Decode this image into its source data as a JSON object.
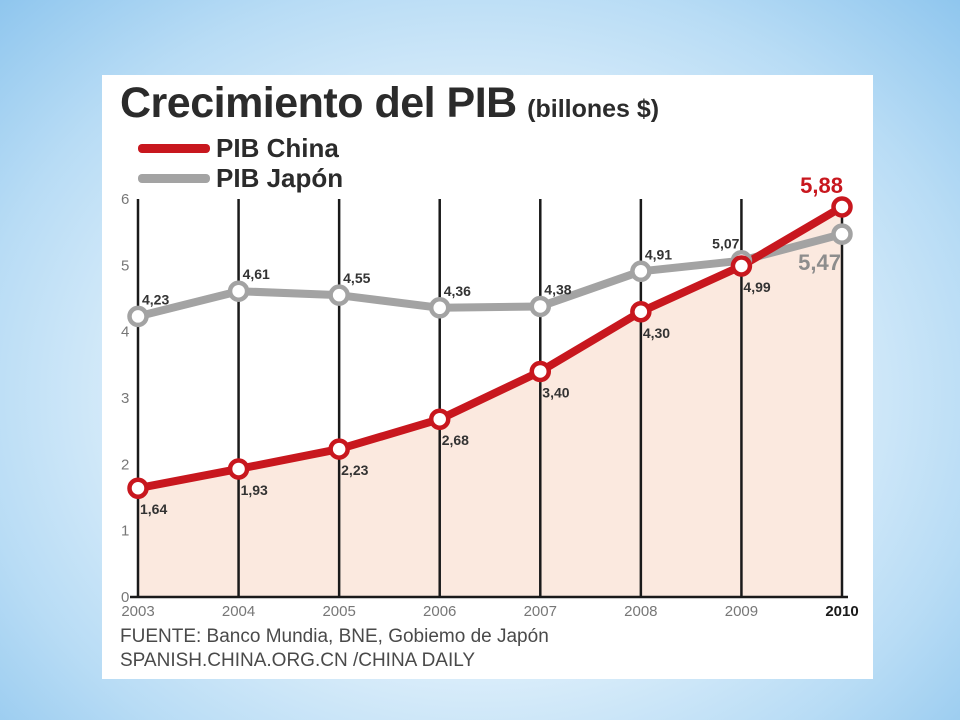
{
  "title": "Crecimiento del PIB",
  "unit": "(billones $)",
  "legend": [
    {
      "label": "PIB China",
      "color": "#c8171e"
    },
    {
      "label": "PIB Japón",
      "color": "#a3a3a3"
    }
  ],
  "source_line1": "FUENTE: Banco Mundia, BNE, Gobiemo de Japón",
  "source_line2": "SPANISH.CHINA.ORG.CN /CHINA DAILY",
  "chart_data": {
    "type": "line",
    "title": "Crecimiento del PIB",
    "ylabel": "",
    "xlabel": "",
    "x": [
      "2003",
      "2004",
      "2005",
      "2006",
      "2007",
      "2008",
      "2009",
      "2010"
    ],
    "ylim": [
      0,
      6
    ],
    "yticks": [
      "0",
      "1",
      "2",
      "3",
      "4",
      "5",
      "6"
    ],
    "grid": "vertical",
    "series": [
      {
        "name": "PIB China",
        "values": [
          1.64,
          1.93,
          2.23,
          2.68,
          3.4,
          4.3,
          4.99,
          5.88
        ],
        "labels": [
          "1,64",
          "1,93",
          "2,23",
          "2,68",
          "3,40",
          "4,30",
          "4,99",
          "5,88"
        ],
        "color": "#c8171e",
        "fill": "#fbe9df"
      },
      {
        "name": "PIB Japón",
        "values": [
          4.23,
          4.61,
          4.55,
          4.36,
          4.38,
          4.91,
          5.07,
          5.47
        ],
        "labels": [
          "4,23",
          "4,61",
          "4,55",
          "4,36",
          "4,38",
          "4,91",
          "5,07",
          "5,47"
        ],
        "color": "#a3a3a3"
      }
    ]
  }
}
